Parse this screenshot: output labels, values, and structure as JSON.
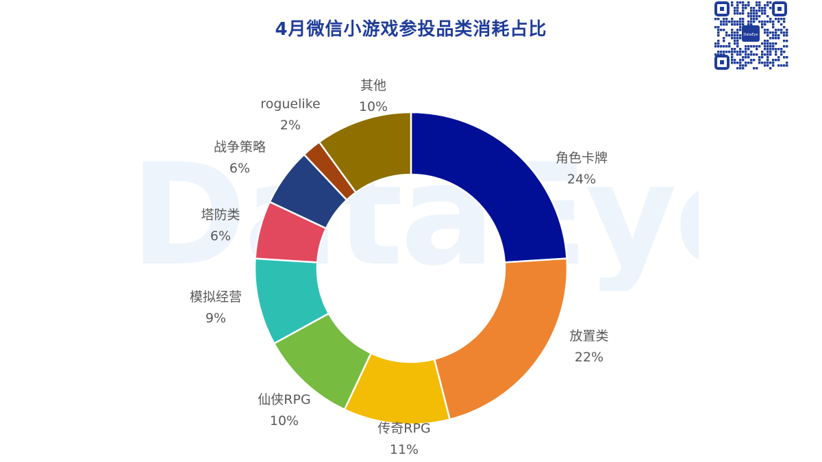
{
  "watermark": "DataEye",
  "qr_badge": "DataEye",
  "chart_data": {
    "type": "pie",
    "subtype": "donut",
    "title": "4月微信小游戏参投品类消耗占比",
    "unit": "%",
    "slices": [
      {
        "name": "角色卡牌",
        "value": 24,
        "label": "24%",
        "color": "#000f96"
      },
      {
        "name": "放置类",
        "value": 22,
        "label": "22%",
        "color": "#ef8430"
      },
      {
        "name": "传奇RPG",
        "value": 11,
        "label": "11%",
        "color": "#f2bd04"
      },
      {
        "name": "仙侠RPG",
        "value": 10,
        "label": "10%",
        "color": "#77bb41"
      },
      {
        "name": "模拟经营",
        "value": 9,
        "label": "9%",
        "color": "#2ebfb3"
      },
      {
        "name": "塔防类",
        "value": 6,
        "label": "6%",
        "color": "#e2495e"
      },
      {
        "name": "战争策略",
        "value": 6,
        "label": "6%",
        "color": "#233f7f"
      },
      {
        "name": "roguelike",
        "value": 2,
        "label": "2%",
        "color": "#a2430f"
      },
      {
        "name": "其他",
        "value": 10,
        "label": "10%",
        "color": "#8e6f00"
      }
    ]
  }
}
